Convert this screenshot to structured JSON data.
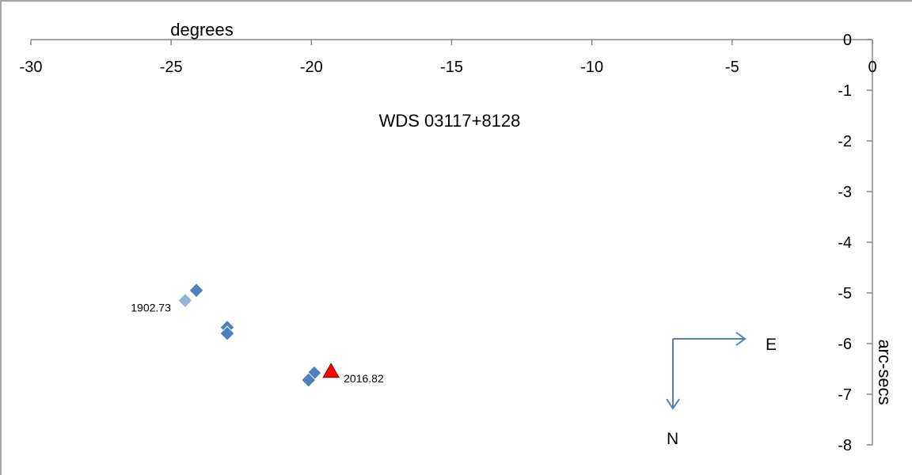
{
  "chart_data": {
    "type": "scatter",
    "title": "WDS 03117+8128",
    "xlabel": "degrees",
    "ylabel": "arc-secs",
    "xlim": [
      -30,
      0
    ],
    "ylim": [
      -8,
      0
    ],
    "x_ticks": [
      -30,
      -25,
      -20,
      -15,
      -10,
      -5,
      0
    ],
    "y_ticks": [
      0,
      -1,
      -2,
      -3,
      -4,
      -5,
      -6,
      -7,
      -8
    ],
    "x_axis_position": "top",
    "y_axis_position": "right",
    "grid": false,
    "series": [
      {
        "marker": "diamond",
        "color": "#4f81bd",
        "points": [
          {
            "x": -24.1,
            "y": -4.95
          },
          {
            "x": -23.0,
            "y": -5.68
          },
          {
            "x": -23.0,
            "y": -5.8
          },
          {
            "x": -19.9,
            "y": -6.58
          },
          {
            "x": -20.1,
            "y": -6.72
          }
        ]
      },
      {
        "marker": "diamond",
        "color": "#95b3d7",
        "points": [
          {
            "x": -24.5,
            "y": -5.15,
            "label": "1902.73"
          }
        ]
      },
      {
        "marker": "triangle",
        "color": "#ff0000",
        "points": [
          {
            "x": -19.3,
            "y": -6.55,
            "label": "2016.82"
          }
        ]
      }
    ],
    "annotations": {
      "east_label": "E",
      "north_label": "N",
      "arrow_color": "#4f81bd"
    }
  }
}
